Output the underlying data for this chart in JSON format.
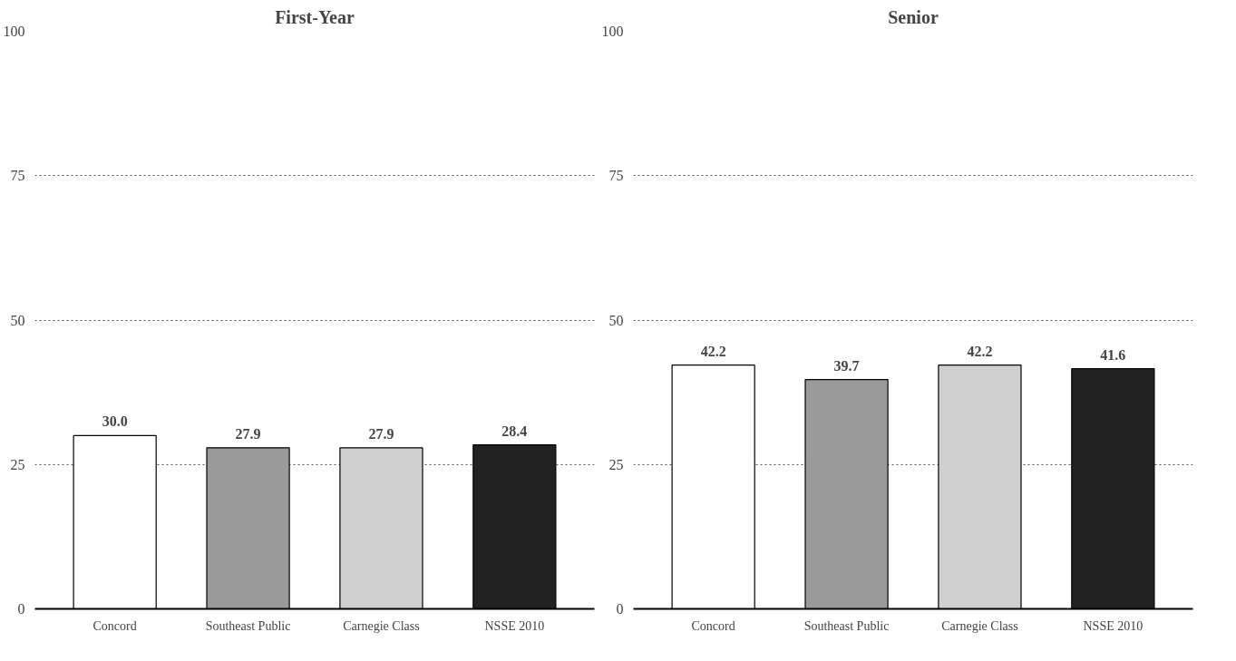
{
  "chart_data": [
    {
      "type": "bar",
      "title": "First-Year",
      "categories": [
        "Concord",
        "Southeast Public",
        "Carnegie Class",
        "NSSE 2010"
      ],
      "values": [
        30.0,
        27.9,
        27.9,
        28.4
      ],
      "value_labels": [
        "30.0",
        "27.9",
        "27.9",
        "28.4"
      ],
      "colors": [
        "#ffffff",
        "#9a9a9a",
        "#cfcfcf",
        "#222222"
      ],
      "ylim": [
        0,
        100
      ],
      "yticks": [
        0,
        25,
        50,
        75,
        100
      ],
      "grid": "y"
    },
    {
      "type": "bar",
      "title": "Senior",
      "categories": [
        "Concord",
        "Southeast Public",
        "Carnegie Class",
        "NSSE 2010"
      ],
      "values": [
        42.2,
        39.7,
        42.2,
        41.6
      ],
      "colors": [
        "#ffffff",
        "#9a9a9a",
        "#cfcfcf",
        "#222222"
      ],
      "ylim": [
        0,
        100
      ],
      "yticks": [
        0,
        25,
        50,
        75,
        100
      ],
      "grid": "y",
      "data_labels": true
    }
  ]
}
